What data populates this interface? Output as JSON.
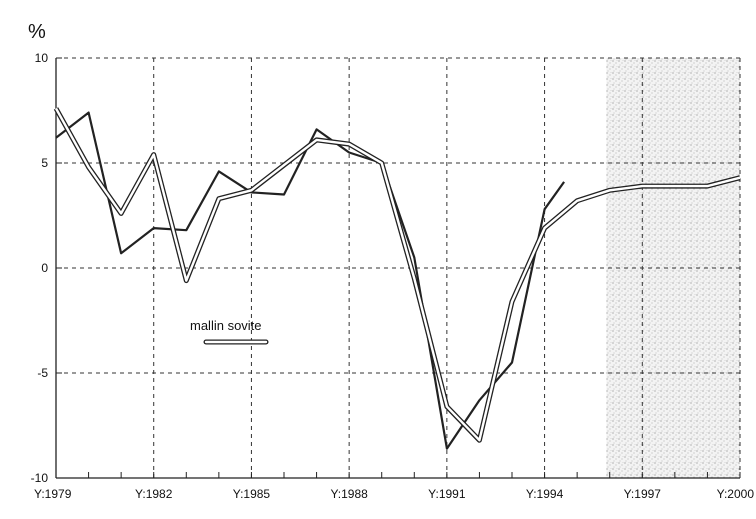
{
  "chart_data": {
    "type": "line",
    "unit_label": "%",
    "x": [
      1979,
      1980,
      1981,
      1982,
      1983,
      1984,
      1985,
      1986,
      1987,
      1988,
      1989,
      1990,
      1991,
      1992,
      1993,
      1994,
      1995,
      1996,
      1997,
      1998,
      1999,
      2000
    ],
    "xlim": [
      1979,
      2000
    ],
    "ylim": [
      -10,
      10
    ],
    "yticks": [
      10,
      5,
      0,
      -5,
      -10
    ],
    "xticks": [
      {
        "value": 1979,
        "label": "Y:1979"
      },
      {
        "value": 1982,
        "label": "Y:1982"
      },
      {
        "value": 1985,
        "label": "Y:1985"
      },
      {
        "value": 1988,
        "label": "Y:1988"
      },
      {
        "value": 1991,
        "label": "Y:1991"
      },
      {
        "value": 1994,
        "label": "Y:1994"
      },
      {
        "value": 1997,
        "label": "Y:1997"
      },
      {
        "value": 2000,
        "label": "Y:2000"
      }
    ],
    "grid": true,
    "shaded_region": {
      "x_from": 1995.9,
      "x_to": 2000,
      "pattern": "stipple"
    },
    "series": [
      {
        "name": "",
        "style": "single",
        "color": "#222222",
        "x": [
          1979,
          1980,
          1981,
          1982,
          1983,
          1984,
          1985,
          1986,
          1987,
          1988,
          1989,
          1990,
          1991,
          1992,
          1993,
          1994,
          1994.6
        ],
        "values": [
          6.2,
          7.4,
          0.7,
          1.9,
          1.8,
          4.6,
          3.6,
          3.5,
          6.6,
          5.5,
          5.0,
          0.5,
          -8.6,
          -6.3,
          -4.5,
          2.8,
          4.1
        ]
      },
      {
        "name": "mallin sovite",
        "style": "double",
        "color": "#222222",
        "x": [
          1979,
          1980,
          1981,
          1982,
          1983,
          1984,
          1985,
          1986,
          1987,
          1988,
          1989,
          1990,
          1991,
          1992,
          1993,
          1994,
          1995,
          1996,
          1997,
          1998,
          1999,
          2000
        ],
        "values": [
          7.6,
          4.8,
          2.6,
          5.4,
          -0.6,
          3.3,
          3.7,
          4.9,
          6.1,
          5.9,
          5.0,
          -0.5,
          -6.6,
          -8.2,
          -1.6,
          1.9,
          3.2,
          3.7,
          3.9,
          3.9,
          3.9,
          4.3
        ]
      }
    ],
    "legend": {
      "label": "mallin sovite",
      "placement": "center-left"
    }
  }
}
